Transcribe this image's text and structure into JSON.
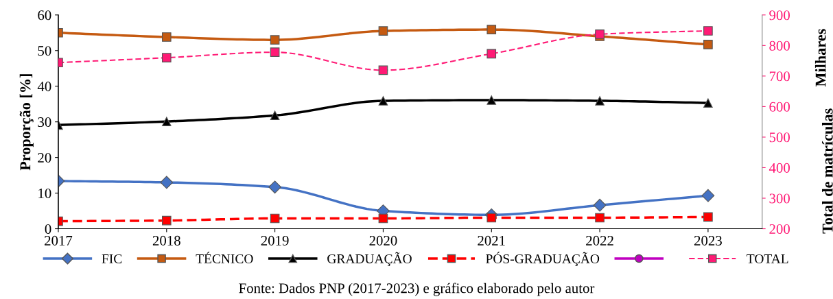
{
  "chart_data": {
    "type": "line",
    "ylabel": "Proporção [%]",
    "y2label": "Total de matrículas",
    "x": [
      2017,
      2018,
      2019,
      2020,
      2021,
      2022,
      2023
    ],
    "xlim": [
      2017,
      2023.5
    ],
    "xticks": [
      2017,
      2018,
      2019,
      2020,
      2021,
      2022,
      2023
    ],
    "ylim": [
      0,
      60
    ],
    "yticks": [
      0,
      10,
      20,
      30,
      40,
      50,
      60
    ],
    "y2lim": [
      200,
      900
    ],
    "y2ticks": [
      200,
      300,
      400,
      500,
      600,
      700,
      800,
      900
    ],
    "grid": false,
    "legend": "bottom",
    "series": [
      {
        "name": "FIC",
        "color": "#4472c4",
        "marker": "diamond",
        "line_style": "solid",
        "values": [
          13.4,
          13.0,
          11.7,
          5.0,
          3.9,
          6.6,
          9.3
        ]
      },
      {
        "name": "TÉCNICO",
        "color": "#c55a11",
        "marker": "square",
        "line_style": "solid",
        "values": [
          55.0,
          53.8,
          53.0,
          55.5,
          55.9,
          54.0,
          51.7
        ]
      },
      {
        "name": "GRADUAÇÃO",
        "color": "#000000",
        "marker": "triangle",
        "line_style": "solid",
        "values": [
          29.1,
          30.1,
          31.8,
          35.9,
          36.1,
          35.9,
          35.3
        ]
      },
      {
        "name": "PÓS-GRADUAÇÃO",
        "color": "#ff0000",
        "marker": "square",
        "line_style": "dashed",
        "values": [
          2.1,
          2.3,
          2.9,
          2.9,
          3.1,
          3.1,
          3.3
        ]
      },
      {
        "color": "#c000c0",
        "marker": "circle",
        "line_style": "solid",
        "values": [
          null,
          null,
          null,
          null,
          null,
          null,
          null
        ]
      },
      {
        "name": "TOTAL",
        "color": "#ff1a75",
        "marker": "square",
        "line_style": "dashed",
        "axis": "y2",
        "values": [
          744,
          760,
          778,
          719,
          773,
          837,
          848
        ]
      }
    ],
    "annotations": [
      "Milhares",
      "Fonte: Dados PNP (2017-2023) e gráfico elaborado pelo autor"
    ]
  }
}
